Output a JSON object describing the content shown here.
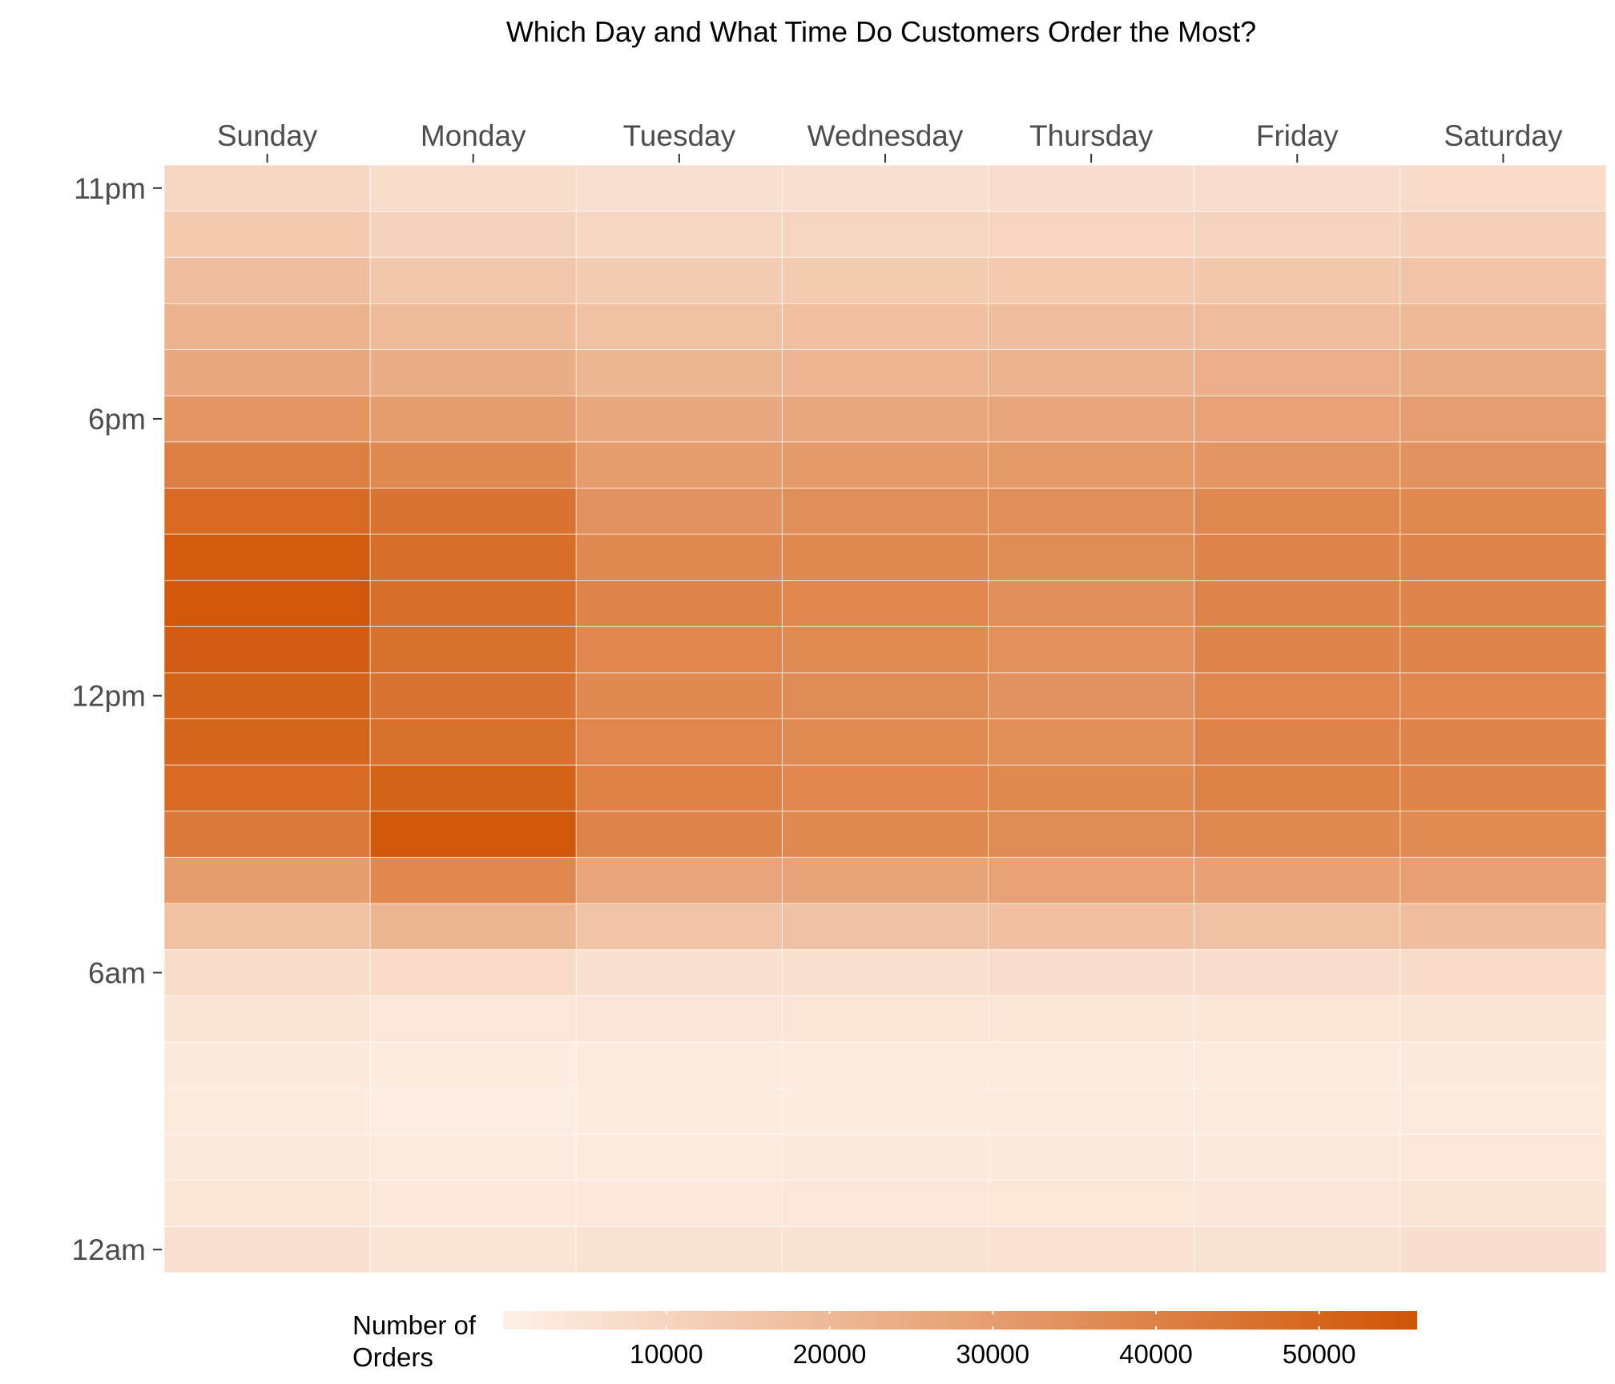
{
  "chart_data": {
    "type": "heatmap",
    "title": "Which Day and What Time Do Customers Order the Most?",
    "x_categories": [
      "Sunday",
      "Monday",
      "Tuesday",
      "Wednesday",
      "Thursday",
      "Friday",
      "Saturday"
    ],
    "x_axis_position": "top",
    "y_categories": [
      "12am",
      "1am",
      "2am",
      "3am",
      "4am",
      "5am",
      "6am",
      "7am",
      "8am",
      "9am",
      "10am",
      "11am",
      "12pm",
      "1pm",
      "2pm",
      "3pm",
      "4pm",
      "5pm",
      "6pm",
      "7pm",
      "8pm",
      "9pm",
      "10pm",
      "11pm"
    ],
    "y_tick_labels": [
      {
        "hour_index": 0,
        "label": "12am"
      },
      {
        "hour_index": 6,
        "label": "6am"
      },
      {
        "hour_index": 12,
        "label": "12pm"
      },
      {
        "hour_index": 18,
        "label": "6pm"
      },
      {
        "hour_index": 23,
        "label": "11pm"
      }
    ],
    "values": [
      [
        6000,
        4000,
        2500,
        2000,
        2500,
        4500,
        7000,
        17000,
        30000,
        43000,
        48000,
        50000,
        51000,
        53000,
        55000,
        54000,
        48000,
        41000,
        33000,
        26000,
        22000,
        18000,
        14000,
        9000
      ],
      [
        4500,
        3000,
        2000,
        1500,
        1800,
        3500,
        8000,
        21000,
        38000,
        55000,
        51000,
        46000,
        45000,
        46000,
        47000,
        47000,
        45000,
        37000,
        30000,
        24000,
        19000,
        15000,
        11000,
        7000
      ],
      [
        5000,
        3500,
        2300,
        1800,
        2000,
        3800,
        6000,
        16000,
        27000,
        39000,
        40000,
        38000,
        37000,
        38000,
        39000,
        37000,
        34000,
        30000,
        26000,
        21000,
        17000,
        13000,
        9500,
        6000
      ],
      [
        5200,
        3600,
        2400,
        1900,
        2100,
        3900,
        6300,
        16500,
        27500,
        37000,
        38000,
        36500,
        36000,
        36500,
        38000,
        37500,
        35000,
        31000,
        26500,
        21500,
        17500,
        13500,
        9800,
        6200
      ],
      [
        5400,
        3700,
        2500,
        2000,
        2200,
        4000,
        6500,
        17500,
        28000,
        36000,
        37000,
        35500,
        34000,
        34500,
        35000,
        36000,
        35000,
        31500,
        27000,
        22000,
        18000,
        14000,
        10000,
        6500
      ],
      [
        5600,
        3800,
        2600,
        2100,
        2300,
        4100,
        6800,
        17000,
        28500,
        37500,
        39500,
        39000,
        38000,
        38500,
        39000,
        39000,
        37500,
        33000,
        28000,
        23000,
        18500,
        14500,
        10500,
        6800
      ],
      [
        6500,
        4500,
        3000,
        2300,
        2400,
        4300,
        7500,
        18000,
        29000,
        36500,
        38500,
        38500,
        38000,
        38500,
        38500,
        38500,
        37500,
        34000,
        29500,
        25000,
        20000,
        16000,
        12000,
        8000
      ]
    ],
    "color_scale": {
      "low": "#fef0e7",
      "high": "#d05506",
      "min": 0,
      "max": 56000
    },
    "legend": {
      "title": [
        "Number of",
        "Orders"
      ],
      "position": "bottom",
      "ticks": [
        10000,
        20000,
        30000,
        40000,
        50000
      ]
    },
    "grid": true
  }
}
